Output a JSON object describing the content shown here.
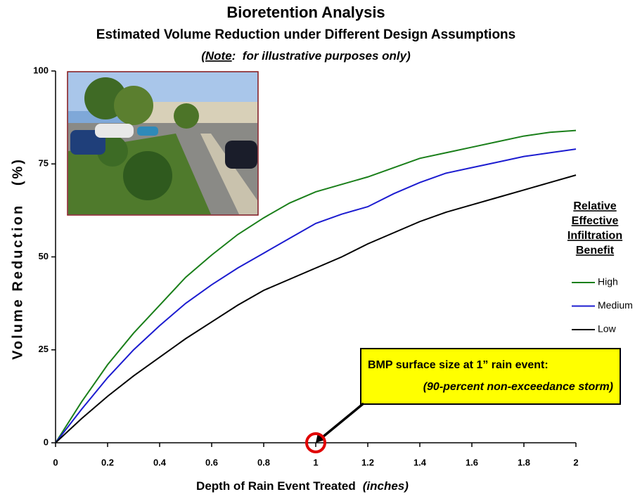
{
  "chart_data": {
    "type": "line",
    "title": "Bioretention Analysis",
    "subtitle": "Estimated Volume Reduction under Different Design Assumptions",
    "note": [
      "(",
      "Note",
      ":  for illustrative purposes only)"
    ],
    "x_label": [
      "Depth of Rain Event Treated",
      "(inches)"
    ],
    "y_label": "Volume Reduction   (%)",
    "x": [
      0,
      0.1,
      0.2,
      0.3,
      0.4,
      0.5,
      0.6,
      0.7,
      0.8,
      0.9,
      1,
      1.1,
      1.2,
      1.3,
      1.4,
      1.5,
      1.6,
      1.7,
      1.8,
      1.9,
      2
    ],
    "series": [
      {
        "name": "High",
        "color": "#1a7f1a",
        "values": [
          0,
          11,
          21,
          29.5,
          37,
          44.5,
          50.5,
          56,
          60.5,
          64.5,
          67.5,
          69.5,
          71.5,
          74,
          76.5,
          78,
          79.5,
          81,
          82.5,
          83.5,
          84
        ]
      },
      {
        "name": "Medium",
        "color": "#1c1cd0",
        "values": [
          0,
          9,
          17.5,
          25,
          31.5,
          37.5,
          42.5,
          47,
          51,
          55,
          59,
          61.5,
          63.5,
          67,
          70,
          72.5,
          74,
          75.5,
          77,
          78,
          79
        ]
      },
      {
        "name": "Low",
        "color": "#000000",
        "values": [
          0,
          6.5,
          12.5,
          18,
          23,
          28,
          32.5,
          37,
          41,
          44,
          47,
          50,
          53.5,
          56.5,
          59.5,
          62,
          64,
          66,
          68,
          70,
          72
        ]
      }
    ],
    "xlim": [
      0,
      2
    ],
    "ylim": [
      0,
      100
    ],
    "xticks": [
      0,
      0.2,
      0.4,
      0.6,
      0.8,
      1,
      1.2,
      1.4,
      1.6,
      1.8,
      2
    ],
    "yticks": [
      0,
      25,
      50,
      75,
      100
    ],
    "legend": "right",
    "legend_title": [
      "Relative",
      "Effective",
      "Infiltration",
      "Benefit"
    ],
    "annotation": {
      "lines": [
        "BMP surface size at 1” rain event:",
        "(90-percent non-exceedance storm)"
      ],
      "x": 1,
      "y": 0
    }
  }
}
